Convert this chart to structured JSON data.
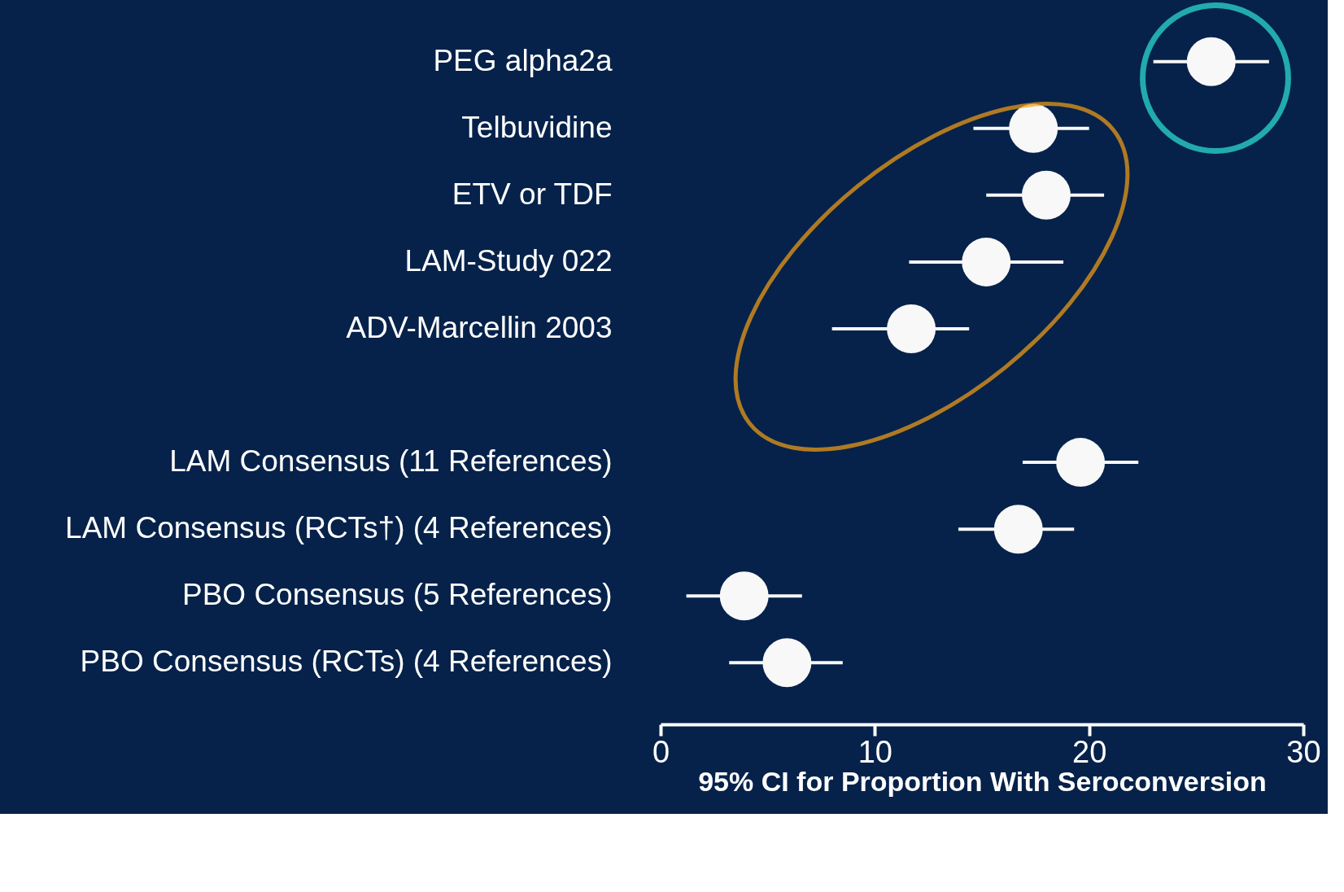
{
  "chart_data": {
    "type": "scatter",
    "orientation": "horizontal",
    "xlabel": "95% CI for Proportion With Seroconversion",
    "categories": [
      "PEG alpha2a",
      "Telbuvidine",
      "ETV or TDF",
      "LAM-Study 022",
      "ADV-Marcellin 2003",
      null,
      "LAM Consensus (11 References)",
      "LAM Consensus (RCTs†) (4 References)",
      "PBO Consensus (5 References)",
      "PBO Consensus (RCTs) (4 References)"
    ],
    "series": [
      {
        "color": "#f8f8f8",
        "values": [
          25.7,
          17.4,
          18.0,
          15.2,
          11.7,
          null,
          19.6,
          16.7,
          3.9,
          5.9
        ],
        "errors": [
          [
            23.0,
            28.4
          ],
          [
            14.6,
            20.0
          ],
          [
            15.2,
            20.7
          ],
          [
            11.6,
            18.8
          ],
          [
            8.0,
            14.4
          ],
          null,
          [
            16.9,
            22.3
          ],
          [
            13.9,
            19.3
          ],
          [
            1.2,
            6.6
          ],
          [
            3.2,
            8.5
          ]
        ]
      }
    ],
    "xlim": [
      0,
      30
    ],
    "xticks": [
      0,
      10,
      20,
      30
    ],
    "marker": "circle",
    "grid": false
  }
}
